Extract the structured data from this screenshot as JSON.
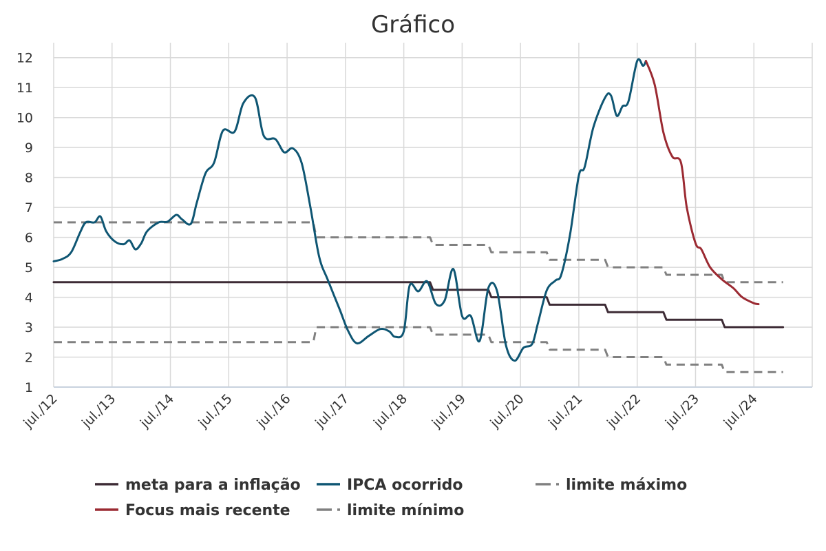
{
  "chart_data": {
    "type": "line",
    "title": "Gráfico",
    "xlabel": "",
    "ylabel": "",
    "ylim": [
      1,
      12.5
    ],
    "yticks": [
      1,
      2,
      3,
      4,
      5,
      6,
      7,
      8,
      9,
      10,
      11,
      12
    ],
    "xlim": [
      2012.5,
      2025.5
    ],
    "xticks": [
      {
        "x": 2012.5,
        "label": "jul./12"
      },
      {
        "x": 2013.5,
        "label": "jul./13"
      },
      {
        "x": 2014.5,
        "label": "jul./14"
      },
      {
        "x": 2015.5,
        "label": "jul./15"
      },
      {
        "x": 2016.5,
        "label": "jul./16"
      },
      {
        "x": 2017.5,
        "label": "jul./17"
      },
      {
        "x": 2018.5,
        "label": "jul./18"
      },
      {
        "x": 2019.5,
        "label": "jul./19"
      },
      {
        "x": 2020.5,
        "label": "jul./20"
      },
      {
        "x": 2021.5,
        "label": "jul./21"
      },
      {
        "x": 2022.5,
        "label": "jul./22"
      },
      {
        "x": 2023.5,
        "label": "jul./23"
      },
      {
        "x": 2024.5,
        "label": "jul./24"
      }
    ],
    "grid": true,
    "legend_position": "bottom",
    "series": [
      {
        "name": "meta para a inflação",
        "color": "#3d2b35",
        "style": "solid",
        "points": [
          [
            2012.5,
            4.5
          ],
          [
            2018.95,
            4.5
          ],
          [
            2019.0,
            4.25
          ],
          [
            2019.95,
            4.25
          ],
          [
            2020.0,
            4.0
          ],
          [
            2020.95,
            4.0
          ],
          [
            2021.0,
            3.75
          ],
          [
            2021.95,
            3.75
          ],
          [
            2022.0,
            3.5
          ],
          [
            2022.95,
            3.5
          ],
          [
            2023.0,
            3.25
          ],
          [
            2023.95,
            3.25
          ],
          [
            2024.0,
            3.0
          ],
          [
            2025.0,
            3.0
          ]
        ]
      },
      {
        "name": "IPCA ocorrido",
        "color": "#0f5673",
        "style": "solid",
        "points": [
          [
            2012.5,
            5.2
          ],
          [
            2012.65,
            5.28
          ],
          [
            2012.8,
            5.5
          ],
          [
            2012.95,
            6.15
          ],
          [
            2013.05,
            6.5
          ],
          [
            2013.2,
            6.5
          ],
          [
            2013.3,
            6.7
          ],
          [
            2013.4,
            6.2
          ],
          [
            2013.55,
            5.86
          ],
          [
            2013.7,
            5.77
          ],
          [
            2013.8,
            5.9
          ],
          [
            2013.9,
            5.6
          ],
          [
            2014.0,
            5.8
          ],
          [
            2014.1,
            6.2
          ],
          [
            2014.3,
            6.5
          ],
          [
            2014.45,
            6.52
          ],
          [
            2014.6,
            6.75
          ],
          [
            2014.7,
            6.6
          ],
          [
            2014.85,
            6.45
          ],
          [
            2014.95,
            7.14
          ],
          [
            2015.1,
            8.13
          ],
          [
            2015.25,
            8.5
          ],
          [
            2015.4,
            9.56
          ],
          [
            2015.6,
            9.53
          ],
          [
            2015.75,
            10.48
          ],
          [
            2015.95,
            10.67
          ],
          [
            2016.1,
            9.39
          ],
          [
            2016.3,
            9.28
          ],
          [
            2016.45,
            8.84
          ],
          [
            2016.6,
            8.97
          ],
          [
            2016.75,
            8.48
          ],
          [
            2016.9,
            7.0
          ],
          [
            2017.05,
            5.35
          ],
          [
            2017.2,
            4.57
          ],
          [
            2017.4,
            3.6
          ],
          [
            2017.55,
            2.86
          ],
          [
            2017.7,
            2.46
          ],
          [
            2017.9,
            2.71
          ],
          [
            2018.1,
            2.94
          ],
          [
            2018.25,
            2.86
          ],
          [
            2018.35,
            2.68
          ],
          [
            2018.5,
            2.86
          ],
          [
            2018.6,
            4.39
          ],
          [
            2018.75,
            4.2
          ],
          [
            2018.9,
            4.53
          ],
          [
            2019.05,
            3.78
          ],
          [
            2019.2,
            3.89
          ],
          [
            2019.35,
            4.94
          ],
          [
            2019.5,
            3.37
          ],
          [
            2019.65,
            3.37
          ],
          [
            2019.8,
            2.54
          ],
          [
            2019.95,
            4.31
          ],
          [
            2020.1,
            4.2
          ],
          [
            2020.25,
            2.4
          ],
          [
            2020.4,
            1.88
          ],
          [
            2020.55,
            2.31
          ],
          [
            2020.7,
            2.44
          ],
          [
            2020.8,
            3.14
          ],
          [
            2020.95,
            4.23
          ],
          [
            2021.1,
            4.56
          ],
          [
            2021.2,
            4.76
          ],
          [
            2021.35,
            6.1
          ],
          [
            2021.5,
            8.06
          ],
          [
            2021.6,
            8.35
          ],
          [
            2021.75,
            9.68
          ],
          [
            2021.95,
            10.67
          ],
          [
            2022.05,
            10.74
          ],
          [
            2022.15,
            10.06
          ],
          [
            2022.25,
            10.38
          ],
          [
            2022.35,
            10.54
          ],
          [
            2022.5,
            11.89
          ],
          [
            2022.6,
            11.73
          ],
          [
            2022.65,
            11.89
          ]
        ]
      },
      {
        "name": "Focus mais recente",
        "color": "#9b2a32",
        "style": "solid",
        "points": [
          [
            2022.65,
            11.89
          ],
          [
            2022.8,
            11.1
          ],
          [
            2022.95,
            9.5
          ],
          [
            2023.1,
            8.7
          ],
          [
            2023.25,
            8.5
          ],
          [
            2023.35,
            7.0
          ],
          [
            2023.5,
            5.8
          ],
          [
            2023.6,
            5.6
          ],
          [
            2023.75,
            5.0
          ],
          [
            2023.95,
            4.6
          ],
          [
            2024.15,
            4.3
          ],
          [
            2024.3,
            4.0
          ],
          [
            2024.5,
            3.8
          ],
          [
            2024.58,
            3.77
          ]
        ]
      },
      {
        "name": "limite máximo",
        "color": "#808080",
        "style": "dashed",
        "points": [
          [
            2012.5,
            6.5
          ],
          [
            2016.95,
            6.5
          ],
          [
            2017.0,
            6.0
          ],
          [
            2018.95,
            6.0
          ],
          [
            2019.0,
            5.75
          ],
          [
            2019.95,
            5.75
          ],
          [
            2020.0,
            5.5
          ],
          [
            2020.95,
            5.5
          ],
          [
            2021.0,
            5.25
          ],
          [
            2021.95,
            5.25
          ],
          [
            2022.0,
            5.0
          ],
          [
            2022.95,
            5.0
          ],
          [
            2023.0,
            4.75
          ],
          [
            2023.95,
            4.75
          ],
          [
            2024.0,
            4.5
          ],
          [
            2025.0,
            4.5
          ]
        ]
      },
      {
        "name": "limite mínimo",
        "color": "#808080",
        "style": "dashed",
        "points": [
          [
            2012.5,
            2.5
          ],
          [
            2016.95,
            2.5
          ],
          [
            2017.0,
            3.0
          ],
          [
            2018.95,
            3.0
          ],
          [
            2019.0,
            2.75
          ],
          [
            2019.95,
            2.75
          ],
          [
            2020.0,
            2.5
          ],
          [
            2020.95,
            2.5
          ],
          [
            2021.0,
            2.25
          ],
          [
            2021.95,
            2.25
          ],
          [
            2022.0,
            2.0
          ],
          [
            2022.95,
            2.0
          ],
          [
            2023.0,
            1.75
          ],
          [
            2023.95,
            1.75
          ],
          [
            2024.0,
            1.5
          ],
          [
            2025.0,
            1.5
          ]
        ]
      }
    ],
    "legend": [
      {
        "label": "meta para a inflação",
        "color": "#3d2b35",
        "style": "solid"
      },
      {
        "label": "IPCA ocorrido",
        "color": "#0f5673",
        "style": "solid"
      },
      {
        "label": "limite máximo",
        "color": "#808080",
        "style": "dashed"
      },
      {
        "label": "Focus mais recente",
        "color": "#9b2a32",
        "style": "solid"
      },
      {
        "label": "limite mínimo",
        "color": "#808080",
        "style": "dashed"
      }
    ]
  }
}
